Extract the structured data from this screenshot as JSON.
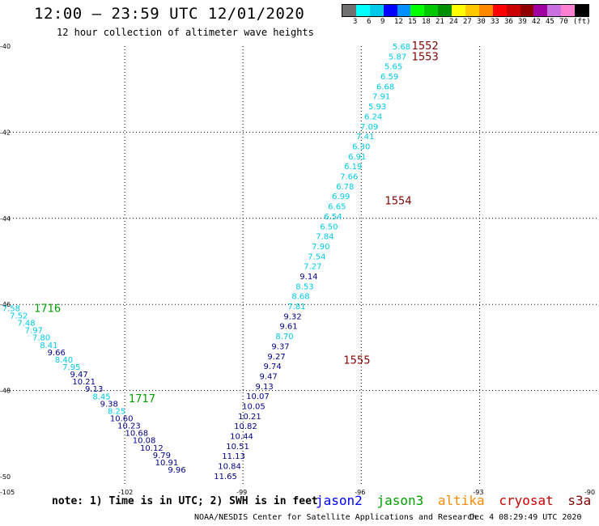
{
  "title": "12:00 – 23:59 UTC 12/01/2020",
  "subtitle": "12 hour collection of altimeter wave heights",
  "colorbar": {
    "colors": [
      "#707070",
      "#00ffff",
      "#00c8e8",
      "#0000ff",
      "#0090ff",
      "#00ff00",
      "#00c800",
      "#009000",
      "#ffff00",
      "#ffc800",
      "#ff8800",
      "#ff0000",
      "#c80000",
      "#900000",
      "#a000a0",
      "#c870e0",
      "#ff80d0",
      "#000000"
    ],
    "labels": [
      "3",
      "6",
      "9",
      "12",
      "15",
      "18",
      "21",
      "24",
      "27",
      "30",
      "33",
      "36",
      "39",
      "42",
      "45",
      "70",
      "(ft)"
    ]
  },
  "axes": {
    "lon_ticks": [
      "-105",
      "-102",
      "-99",
      "-96",
      "-93",
      "-90"
    ],
    "lat_ticks": [
      "-40",
      "-42",
      "-44",
      "-46",
      "-48",
      "-50"
    ]
  },
  "colors": {
    "jason2": "#0000ff",
    "jason3": "#00a000",
    "altika": "#ff8800",
    "cryosat": "#cc0000",
    "s3a": "#800000",
    "swh_light": "#00c8e8",
    "swh_dark": "#00008b",
    "pass_cryosat": "#800000",
    "pass_jason3": "#00a000",
    "grid": "#000000"
  },
  "track_east": {
    "values": [
      "5.68",
      "5.87",
      "5.65",
      "6.59",
      "6.68",
      "7.91",
      "5.93",
      "6.24",
      "7.09",
      "7.41",
      "6.30",
      "6.91",
      "6.19",
      "7.66",
      "6.78",
      "6.99",
      "6.65",
      "6.54",
      "6.50",
      "7.84",
      "7.90",
      "7.54",
      "7.27",
      "9.14",
      "8.53",
      "8.68",
      "7.81",
      "9.32",
      "9.61",
      "8.70",
      "9.37",
      "9.27",
      "9.74",
      "9.47",
      "9.13",
      "10.07",
      "10.05",
      "10.21",
      "10.82",
      "10.44",
      "10.51",
      "11.13",
      "10.84",
      "11.65"
    ]
  },
  "track_west": {
    "values": [
      "7.58",
      "7.52",
      "7.48",
      "7.97",
      "7.80",
      "8.41",
      "9.66",
      "8.40",
      "7.95",
      "9.47",
      "10.21",
      "9.13",
      "8.45",
      "9.38",
      "8.25",
      "10.60",
      "10.23",
      "10.68",
      "10.08",
      "10.12",
      "9.79",
      "10.91",
      "9.96"
    ]
  },
  "pass_labels": [
    {
      "text": "1552",
      "lon": -94.72,
      "lat": -40.0,
      "sat": "s3a"
    },
    {
      "text": "1553",
      "lon": -94.72,
      "lat": -40.25,
      "sat": "s3a"
    },
    {
      "text": "1554",
      "lon": -95.4,
      "lat": -43.6,
      "sat": "s3a"
    },
    {
      "text": "1555",
      "lon": -96.45,
      "lat": -47.3,
      "sat": "s3a"
    },
    {
      "text": "1716",
      "lon": -104.3,
      "lat": -46.1,
      "sat": "jason3"
    },
    {
      "text": "1717",
      "lon": -101.9,
      "lat": -48.2,
      "sat": "jason3"
    }
  ],
  "note": "note: 1) Time is in UTC; 2) SWH is in feet",
  "legend": {
    "jason2": "jason2",
    "jason3": "jason3",
    "altika": "altika",
    "cryosat": "cryosat",
    "s3a": "s3a"
  },
  "footer": "NOAA/NESDIS Center for Satellite Applications and Research",
  "footer_date": "Dec  4 08:29:49 UTC 2020"
}
